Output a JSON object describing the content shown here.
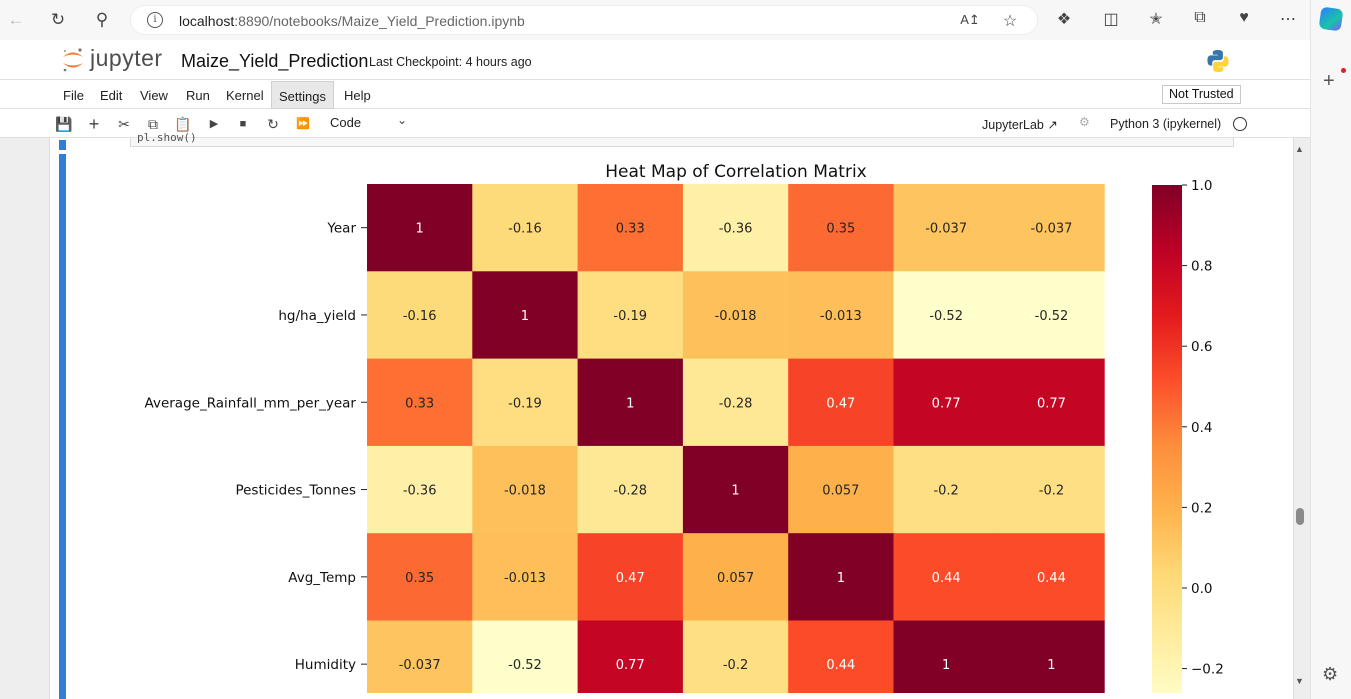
{
  "browser": {
    "url_host": "localhost",
    "url_rest": ":8890/notebooks/Maize_Yield_Prediction.ipynb"
  },
  "jupyter": {
    "logo_text": "jupyter",
    "notebook_title": "Maize_Yield_Prediction",
    "checkpoint": "Last Checkpoint: 4 hours ago",
    "menu": [
      "File",
      "Edit",
      "View",
      "Run",
      "Kernel",
      "Settings",
      "Help"
    ],
    "active_menu": "Settings",
    "trusted": "Not Trusted",
    "cell_type": "Code",
    "jupyterlab_link": "JupyterLab",
    "kernel": "Python 3 (ipykernel)",
    "prev_cell_fragment": "pl.show()"
  },
  "chart_data": {
    "type": "heatmap",
    "title": "Heat Map of Correlation Matrix",
    "row_labels": [
      "Year",
      "hg/ha_yield",
      "Average_Rainfall_mm_per_year",
      "Pesticides_Tonnes",
      "Avg_Temp",
      "Humidity"
    ],
    "values": [
      [
        1,
        -0.16,
        0.33,
        -0.36,
        0.35,
        -0.037,
        -0.037
      ],
      [
        -0.16,
        1,
        -0.19,
        -0.018,
        -0.013,
        -0.52,
        -0.52
      ],
      [
        0.33,
        -0.19,
        1,
        -0.28,
        0.47,
        0.77,
        0.77
      ],
      [
        -0.36,
        -0.018,
        -0.28,
        1,
        0.057,
        -0.2,
        -0.2
      ],
      [
        0.35,
        -0.013,
        0.47,
        0.057,
        1,
        0.44,
        0.44
      ],
      [
        -0.037,
        -0.52,
        0.77,
        -0.2,
        0.44,
        1,
        1
      ]
    ],
    "labels": [
      [
        "1",
        "-0.16",
        "0.33",
        "-0.36",
        "0.35",
        "-0.037",
        "-0.037"
      ],
      [
        "-0.16",
        "1",
        "-0.19",
        "-0.018",
        "-0.013",
        "-0.52",
        "-0.52"
      ],
      [
        "0.33",
        "-0.19",
        "1",
        "-0.28",
        "0.47",
        "0.77",
        "0.77"
      ],
      [
        "-0.36",
        "-0.018",
        "-0.28",
        "1",
        "0.057",
        "-0.2",
        "-0.2"
      ],
      [
        "0.35",
        "-0.013",
        "0.47",
        "0.057",
        "1",
        "0.44",
        "0.44"
      ],
      [
        "-0.037",
        "-0.52",
        "0.77",
        "-0.2",
        "0.44",
        "1",
        "1"
      ]
    ],
    "colorbar_ticks": [
      "1.0",
      "0.8",
      "0.6",
      "0.4",
      "0.2",
      "0.0",
      "−0.2"
    ],
    "colorbar_tick_values": [
      1.0,
      0.8,
      0.6,
      0.4,
      0.2,
      0.0,
      -0.2
    ],
    "vmin": -0.52,
    "vmax": 1.0,
    "colormap": "YlOrRd",
    "colors": [
      "#ffffcc",
      "#ffeda0",
      "#fed976",
      "#feb24c",
      "#fd8d3c",
      "#fc4e2a",
      "#e31a1c",
      "#bd0026",
      "#800026"
    ]
  }
}
